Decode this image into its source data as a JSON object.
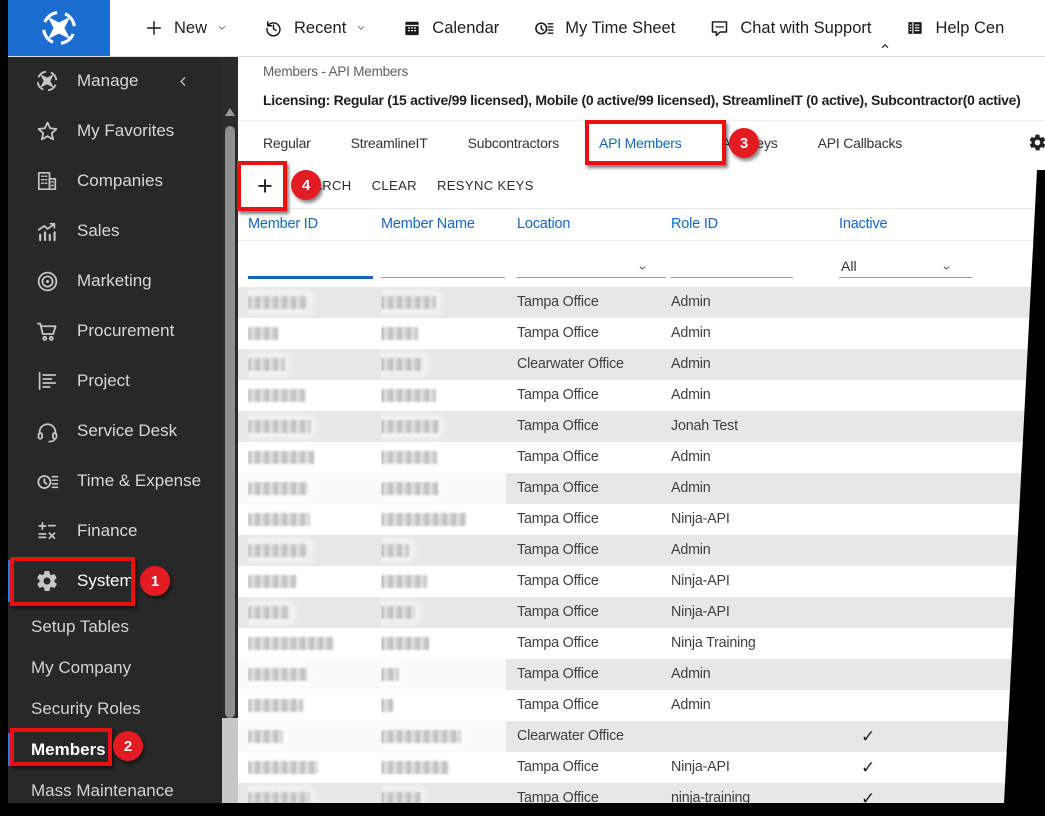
{
  "topbar": {
    "brand_icon": "connectwise-compass-icon",
    "items": [
      {
        "label": "New",
        "icon": "plus-icon",
        "chevron": true
      },
      {
        "label": "Recent",
        "icon": "history-icon",
        "chevron": true
      },
      {
        "label": "Calendar",
        "icon": "calendar-icon",
        "chevron": false
      },
      {
        "label": "My Time Sheet",
        "icon": "timesheet-icon",
        "chevron": false
      },
      {
        "label": "Chat with Support",
        "icon": "chat-icon",
        "chevron": false
      },
      {
        "label": "Help Cen",
        "icon": "help-center-icon",
        "chevron": false
      }
    ]
  },
  "sidebar": {
    "header": {
      "label": "Manage",
      "icon": "compass-icon",
      "collapse_icon": "chevron-left-icon"
    },
    "items": [
      {
        "label": "My Favorites",
        "icon": "star-icon",
        "active": false
      },
      {
        "label": "Companies",
        "icon": "buildings-icon",
        "active": false
      },
      {
        "label": "Sales",
        "icon": "sales-chart-icon",
        "active": false
      },
      {
        "label": "Marketing",
        "icon": "bullseye-icon",
        "active": false
      },
      {
        "label": "Procurement",
        "icon": "cart-icon",
        "active": false
      },
      {
        "label": "Project",
        "icon": "project-list-icon",
        "active": false
      },
      {
        "label": "Service Desk",
        "icon": "headset-icon",
        "active": false
      },
      {
        "label": "Time & Expense",
        "icon": "clock-list-icon",
        "active": false
      },
      {
        "label": "Finance",
        "icon": "calculator-icon",
        "active": false
      },
      {
        "label": "System",
        "icon": "gear-icon",
        "active": true
      }
    ],
    "subitems": [
      {
        "label": "Setup Tables",
        "active": false
      },
      {
        "label": "My Company",
        "active": false
      },
      {
        "label": "Security Roles",
        "active": false
      },
      {
        "label": "Members",
        "active": true
      },
      {
        "label": "Mass Maintenance",
        "active": false
      }
    ]
  },
  "page": {
    "breadcrumb": "Members - API Members",
    "licensing": "Licensing: Regular (15 active/99 licensed), Mobile (0 active/99 licensed), StreamlineIT (0 active), Subcontractor(0 active)"
  },
  "tabs": {
    "items": [
      "Regular",
      "StreamlineIT",
      "Subcontractors",
      "API Members",
      "API Keys",
      "API Callbacks"
    ],
    "active": "API Members",
    "gear_icon": "gear-icon"
  },
  "toolbar": {
    "add_label": "+",
    "actions": [
      "SEARCH",
      "CLEAR",
      "RESYNC KEYS"
    ]
  },
  "table": {
    "columns": [
      "Member ID",
      "Member Name",
      "Location",
      "Role ID",
      "Inactive"
    ],
    "filters": {
      "member_id": "",
      "member_name": "",
      "location": "",
      "role_id": "",
      "inactive": "All"
    },
    "rows": [
      {
        "location": "Tampa Office",
        "role": "Admin",
        "inactive": false
      },
      {
        "location": "Tampa Office",
        "role": "Admin",
        "inactive": false
      },
      {
        "location": "Clearwater Office",
        "role": "Admin",
        "inactive": false
      },
      {
        "location": "Tampa Office",
        "role": "Admin",
        "inactive": false
      },
      {
        "location": "Tampa Office",
        "role": "Jonah Test",
        "inactive": false
      },
      {
        "location": "Tampa Office",
        "role": "Admin",
        "inactive": false
      },
      {
        "location": "Tampa Office",
        "role": "Admin",
        "inactive": false
      },
      {
        "location": "Tampa Office",
        "role": "Ninja-API",
        "inactive": false
      },
      {
        "location": "Tampa Office",
        "role": "Admin",
        "inactive": false
      },
      {
        "location": "Tampa Office",
        "role": "Ninja-API",
        "inactive": false
      },
      {
        "location": "Tampa Office",
        "role": "Ninja-API",
        "inactive": false
      },
      {
        "location": "Tampa Office",
        "role": "Ninja Training",
        "inactive": false
      },
      {
        "location": "Tampa Office",
        "role": "Admin",
        "inactive": false
      },
      {
        "location": "Tampa Office",
        "role": "Admin",
        "inactive": false
      },
      {
        "location": "Clearwater Office",
        "role": "",
        "inactive": true
      },
      {
        "location": "Tampa Office",
        "role": "Ninja-API",
        "inactive": true
      },
      {
        "location": "Tampa Office",
        "role": "ninja-training",
        "inactive": true
      }
    ],
    "redact_widths": [
      [
        60,
        55
      ],
      [
        30,
        37
      ],
      [
        37,
        42
      ],
      [
        57,
        55
      ],
      [
        63,
        58
      ],
      [
        66,
        56
      ],
      [
        60,
        57
      ],
      [
        62,
        85
      ],
      [
        60,
        28
      ],
      [
        48,
        46
      ],
      [
        42,
        34
      ],
      [
        86,
        48
      ],
      [
        60,
        18
      ],
      [
        55,
        12
      ],
      [
        35,
        80
      ],
      [
        70,
        68
      ],
      [
        62,
        40
      ]
    ],
    "white_patch_rows": [
      6,
      12,
      14
    ]
  },
  "annotations": {
    "badges": [
      "1",
      "2",
      "3",
      "4"
    ]
  },
  "colors": {
    "brand_blue": "#1c6dd0",
    "accent_blue": "#1565c0",
    "annotation_red": "#ea1010",
    "badge_red": "#e31b23",
    "sidebar_bg": "#282828",
    "row_stripe": "#e7e7e7"
  }
}
